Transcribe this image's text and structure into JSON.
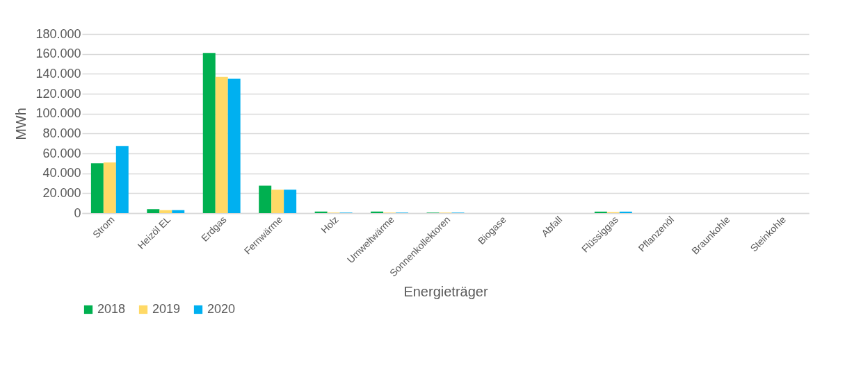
{
  "chart_data": {
    "type": "bar",
    "xlabel": "Energieträger",
    "ylabel": "MWh",
    "categories": [
      "Strom",
      "Heizöl EL",
      "Erdgas",
      "Fernwärme",
      "Holz",
      "Umweltwärme",
      "Sonnenkollektoren",
      "Biogase",
      "Abfall",
      "Flüssiggas",
      "Pflanzenöl",
      "Braunkohle",
      "Steinkohle"
    ],
    "series": [
      {
        "name": "2018",
        "color": "#00b050",
        "values": [
          50000,
          4000,
          161000,
          27500,
          1500,
          1500,
          500,
          0,
          0,
          1500,
          0,
          0,
          0
        ]
      },
      {
        "name": "2019",
        "color": "#ffd966",
        "values": [
          51000,
          3000,
          137000,
          23500,
          500,
          500,
          500,
          0,
          0,
          1000,
          0,
          0,
          0
        ]
      },
      {
        "name": "2020",
        "color": "#00b0f0",
        "values": [
          67500,
          3000,
          135000,
          23500,
          500,
          500,
          500,
          0,
          0,
          1500,
          0,
          0,
          0
        ]
      }
    ],
    "ylim": [
      0,
      180000
    ],
    "yticks": [
      {
        "value": 0,
        "label": "0"
      },
      {
        "value": 20000,
        "label": "20.000"
      },
      {
        "value": 40000,
        "label": "40.000"
      },
      {
        "value": 60000,
        "label": "60.000"
      },
      {
        "value": 80000,
        "label": "80.000"
      },
      {
        "value": 100000,
        "label": "100.000"
      },
      {
        "value": 120000,
        "label": "120.000"
      },
      {
        "value": 140000,
        "label": "140.000"
      },
      {
        "value": 160000,
        "label": "160.000"
      },
      {
        "value": 180000,
        "label": "180.000"
      }
    ],
    "grid": "y",
    "legend": "bottom"
  }
}
